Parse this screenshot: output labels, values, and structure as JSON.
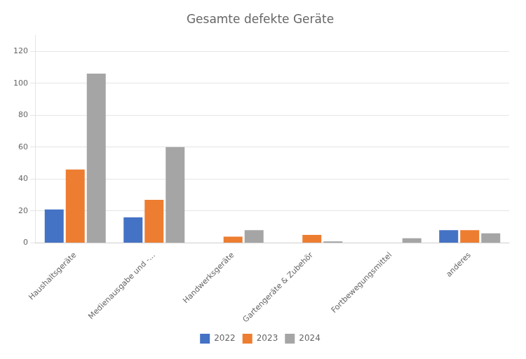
{
  "chart_data": {
    "type": "bar",
    "title": "Gesamte defekte Geräte",
    "categories": [
      "Haushaltsgeräte",
      "Medienausgabe und -...",
      "Handwerksgeräte",
      "Gartengeräte & Zubehör",
      "Fortbewegungsmittel",
      "anderes"
    ],
    "series": [
      {
        "name": "2022",
        "color": "#4472C4",
        "values": [
          21,
          16,
          0,
          0,
          0,
          8
        ]
      },
      {
        "name": "2023",
        "color": "#ED7D31",
        "values": [
          46,
          27,
          4,
          5,
          0,
          8
        ]
      },
      {
        "name": "2024",
        "color": "#A5A5A5",
        "values": [
          106,
          60,
          8,
          1,
          3,
          6
        ]
      }
    ],
    "ylim": [
      0,
      130
    ],
    "yticks": [
      0,
      20,
      40,
      60,
      80,
      100,
      120
    ],
    "grid": true,
    "legend": "bottom"
  }
}
